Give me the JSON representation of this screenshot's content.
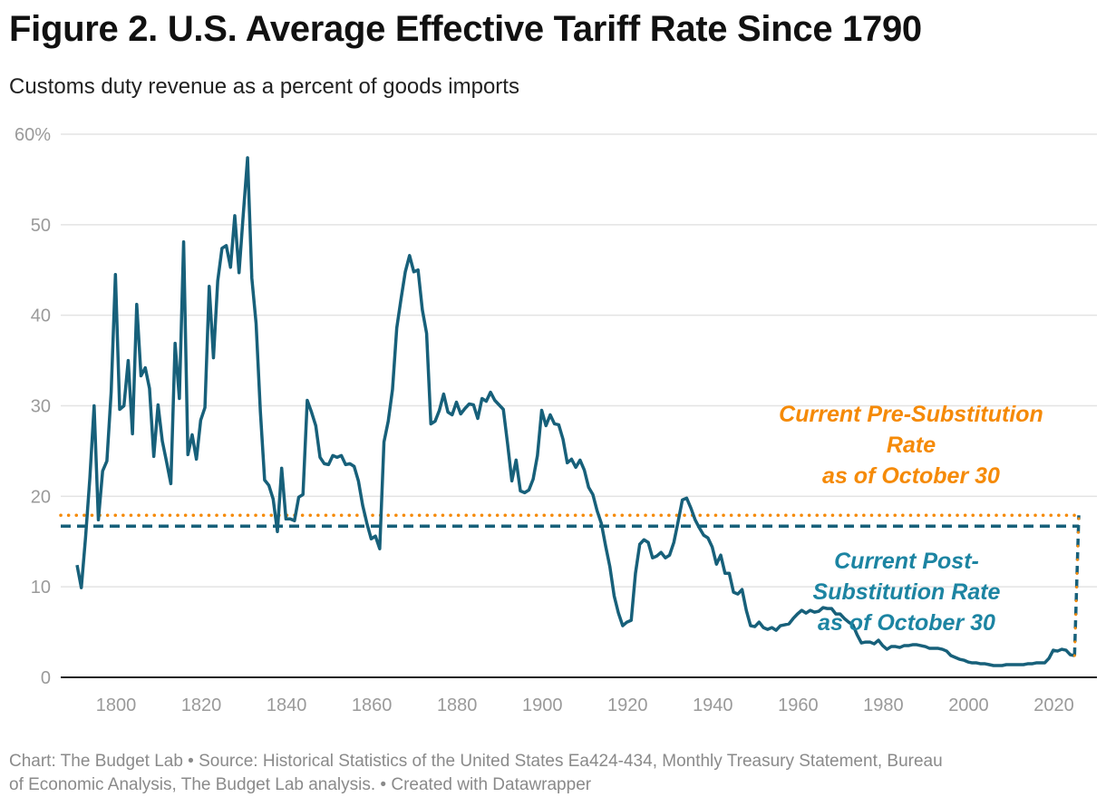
{
  "header": {
    "title": "Figure 2. U.S. Average Effective Tariff Rate Since 1790",
    "subtitle": "Customs duty revenue as a percent of goods imports"
  },
  "footer": {
    "line1": "Chart: The Budget Lab • Source: Historical Statistics of the United States Ea424-434, Monthly Treasury Statement, Bureau",
    "line2": "of Economic Analysis, The Budget Lab analysis. • Created with Datawrapper"
  },
  "colors": {
    "series": "#17607a",
    "pre_substitution": "#f58a07",
    "post_label": "#1c84a2",
    "post_line": "#17607a"
  },
  "chart_data": {
    "type": "line",
    "title": "Figure 2. U.S. Average Effective Tariff Rate Since 1790",
    "subtitle": "Customs duty revenue as a percent of goods imports",
    "xlabel": "",
    "ylabel": "",
    "xlim": [
      1790,
      2025
    ],
    "ylim": [
      0,
      60
    ],
    "grid": true,
    "x_ticks": [
      "1800",
      "1820",
      "1840",
      "1860",
      "1880",
      "1900",
      "1920",
      "1940",
      "1960",
      "1980",
      "2000",
      "2020"
    ],
    "y_ticks": [
      "0",
      "10",
      "20",
      "30",
      "40",
      "50",
      "60%"
    ],
    "series": [
      {
        "start_year": 1790,
        "values": [
          12.4,
          9.9,
          15.5,
          22,
          30.0,
          17.4,
          22.8,
          23.9,
          31.5,
          44.5,
          29.6,
          30.0,
          35.0,
          26.9,
          41.2,
          33.3,
          34.2,
          31.9,
          24.4,
          30.1,
          26.1,
          23.8,
          21.4,
          36.9,
          30.8,
          48.1,
          24.6,
          26.8,
          24.1,
          28.4,
          29.8,
          43.2,
          35.3,
          43.8,
          47.4,
          47.7,
          45.3,
          51.0,
          44.7,
          51.2,
          57.4,
          44.1,
          39.1,
          29.4,
          21.8,
          21.2,
          19.7,
          16.1,
          23.1,
          17.5,
          17.5,
          17.3,
          19.9,
          20.2,
          30.6,
          29.3,
          27.8,
          24.3,
          23.6,
          23.5,
          24.5,
          24.3,
          24.5,
          23.5,
          23.6,
          23.3,
          21.7,
          19.0,
          17.0,
          15.3,
          15.6,
          14.2,
          26.0,
          28.3,
          31.8,
          38.6,
          41.8,
          44.8,
          46.6,
          44.8,
          45.0,
          40.6,
          38.0,
          28.0,
          28.3,
          29.5,
          31.3,
          29.3,
          29.0,
          30.4,
          29.1,
          29.7,
          30.2,
          30.1,
          28.6,
          30.8,
          30.5,
          31.5,
          30.6,
          30.1,
          29.6,
          25.8,
          21.7,
          24.0,
          20.6,
          20.4,
          20.7,
          21.9,
          24.5,
          29.5,
          27.8,
          29.0,
          28.0,
          27.9,
          26.3,
          23.7,
          24.1,
          23.2,
          24.0,
          22.9,
          21.0,
          20.2,
          18.4,
          17.0,
          14.5,
          12.2,
          9.0,
          7.1,
          5.7,
          6.1,
          6.3,
          11.5,
          14.7,
          15.2,
          14.9,
          13.2,
          13.4,
          13.8,
          13.2,
          13.5,
          14.9,
          17.2,
          19.6,
          19.8,
          18.7,
          17.4,
          16.5,
          15.7,
          15.4,
          14.4,
          12.5,
          13.5,
          11.5,
          11.5,
          9.4,
          9.2,
          9.7,
          7.4,
          5.7,
          5.6,
          6.1,
          5.5,
          5.3,
          5.5,
          5.2,
          5.7,
          5.8,
          5.9,
          6.5,
          7.0,
          7.4,
          7.1,
          7.4,
          7.2,
          7.3,
          7.7,
          7.6,
          7.6,
          7.0,
          7.0,
          6.5,
          6.1,
          5.8,
          4.7,
          3.8,
          3.9,
          3.9,
          3.7,
          4.1,
          3.5,
          3.1,
          3.4,
          3.4,
          3.3,
          3.5,
          3.5,
          3.6,
          3.6,
          3.5,
          3.4,
          3.2,
          3.2,
          3.2,
          3.1,
          2.9,
          2.4,
          2.2,
          2.0,
          1.9,
          1.7,
          1.6,
          1.6,
          1.5,
          1.5,
          1.4,
          1.3,
          1.3,
          1.3,
          1.4,
          1.4,
          1.4,
          1.4,
          1.4,
          1.5,
          1.5,
          1.6,
          1.6,
          1.6,
          2.1,
          3.0,
          2.9,
          3.1,
          3.0,
          2.5,
          2.4
        ]
      }
    ],
    "current_rates": {
      "year": 2025,
      "pre_substitution": 17.9,
      "post_substitution": 16.7
    },
    "annotations": {
      "pre_lines": [
        "Current Pre-Substitution",
        "Rate",
        "as of October 30"
      ],
      "post_lines": [
        "Current Post-",
        "Substitution Rate",
        "as of October 30"
      ]
    }
  }
}
